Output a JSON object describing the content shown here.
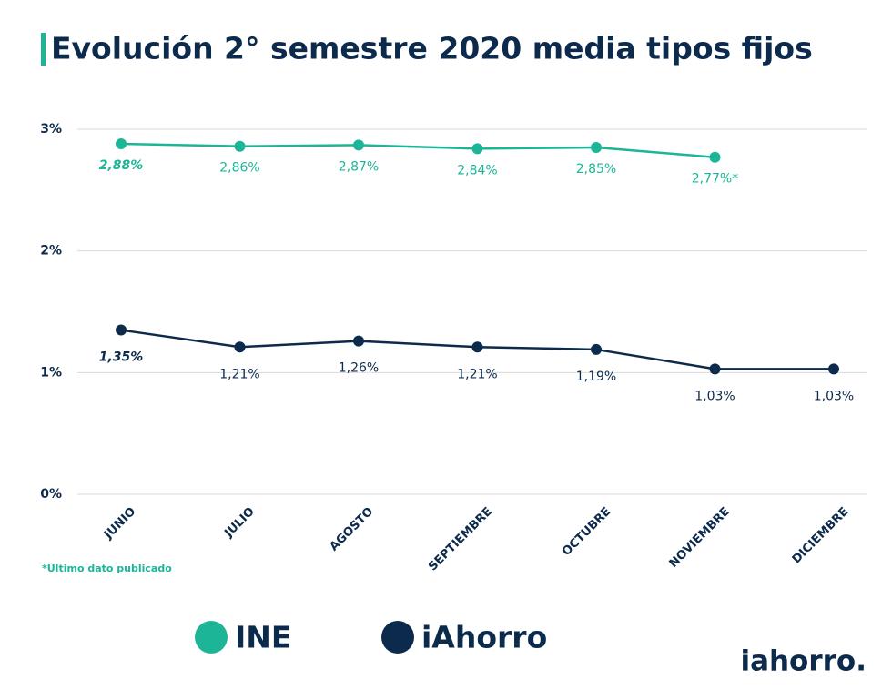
{
  "chart_data": {
    "type": "line",
    "title": "Evolución 2° semestre 2020 media tipos fijos",
    "categories": [
      "JUNIO",
      "JULIO",
      "AGOSTO",
      "SEPTIEMBRE",
      "OCTUBRE",
      "NOVIEMBRE",
      "DICIEMBRE"
    ],
    "series": [
      {
        "name": "INE",
        "color": "#1db597",
        "values": [
          2.88,
          2.86,
          2.87,
          2.84,
          2.85,
          2.77,
          null
        ],
        "value_labels": [
          "2,88%",
          "2,86%",
          "2,87%",
          "2,84%",
          "2,85%",
          "2,77%*",
          null
        ]
      },
      {
        "name": "iAhorro",
        "color": "#0c2a4b",
        "values": [
          1.35,
          1.21,
          1.26,
          1.21,
          1.19,
          1.03,
          1.03
        ],
        "value_labels": [
          "1,35%",
          "1,21%",
          "1,26%",
          "1,21%",
          "1,19%",
          "1,03%",
          "1,03%"
        ]
      }
    ],
    "ylim": [
      0,
      3
    ],
    "yticks": [
      {
        "value": 0,
        "label": "0%"
      },
      {
        "value": 1,
        "label": "1%"
      },
      {
        "value": 2,
        "label": "2%"
      },
      {
        "value": 3,
        "label": "3%"
      }
    ],
    "grid": true,
    "footnote": "*Último dato publicado"
  },
  "logo": "iahorro."
}
